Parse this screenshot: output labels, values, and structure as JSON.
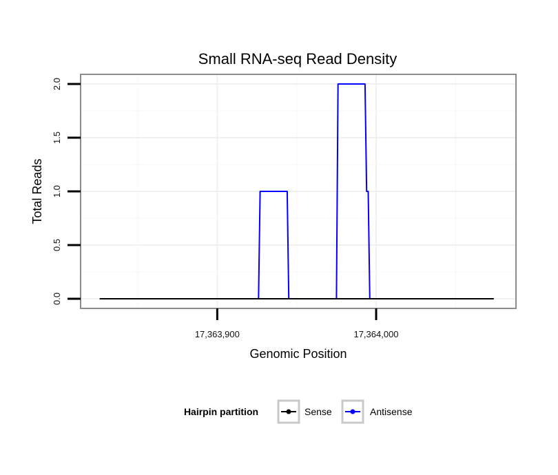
{
  "chart_data": {
    "type": "line",
    "title": "Small RNA-seq Read Density",
    "xlabel": "Genomic Position",
    "ylabel": "Total Reads",
    "xlim": [
      17363814,
      17364088
    ],
    "ylim": [
      -0.09,
      2.09
    ],
    "x_ticks": [
      17363900,
      17364000
    ],
    "x_tick_labels": [
      "17,363,900",
      "17,364,000"
    ],
    "y_ticks": [
      0,
      0.5,
      1,
      1.5,
      2
    ],
    "y_tick_labels": [
      "0.0",
      "0.5",
      "1.0",
      "1.5",
      "2.0"
    ],
    "grid": true,
    "legend": {
      "title": "Hairpin partition",
      "position": "bottom"
    },
    "series": [
      {
        "name": "Sense",
        "color": "#000000",
        "x": [
          17363826,
          17364074
        ],
        "y": [
          0,
          0
        ]
      },
      {
        "name": "Antisense",
        "color": "#0000ff",
        "x": [
          17363826,
          17363926,
          17363927,
          17363944,
          17363945,
          17363975,
          17363976,
          17363993,
          17363994,
          17363995,
          17363996,
          17364074
        ],
        "y": [
          0,
          0,
          1,
          1,
          0,
          0,
          2,
          2,
          1,
          1,
          0,
          0
        ]
      }
    ]
  }
}
